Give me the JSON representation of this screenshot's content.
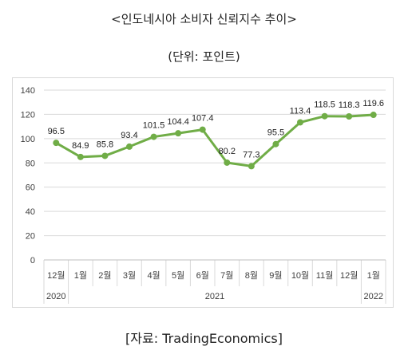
{
  "title": "<인도네시아 소비자 신뢰지수 추이>",
  "unit_label": "(단위: 포인트)",
  "source": "[자료: TradingEconomics]",
  "colors": {
    "line": "#70ad47",
    "grid": "#d9d9d9",
    "text": "#404040"
  },
  "chart_data": {
    "type": "line",
    "categories": [
      "12월",
      "1월",
      "2월",
      "3월",
      "4월",
      "5월",
      "6월",
      "7월",
      "8월",
      "9월",
      "10월",
      "11월",
      "12월",
      "1월"
    ],
    "year_groups": [
      {
        "label": "2020",
        "span": 1
      },
      {
        "label": "2021",
        "span": 12
      },
      {
        "label": "2022",
        "span": 1
      }
    ],
    "values": [
      96.5,
      84.9,
      85.8,
      93.4,
      101.5,
      104.4,
      107.4,
      80.2,
      77.3,
      95.5,
      113.4,
      118.5,
      118.3,
      119.6
    ],
    "data_labels": [
      "96.5",
      "84.9",
      "85.8",
      "93.4",
      "101.5",
      "104.4",
      "107.4",
      "80.2",
      "77.3",
      "95.5",
      "113.4",
      "118.5",
      "118.3",
      "119.6"
    ],
    "yticks": [
      "0",
      "20",
      "40",
      "60",
      "80",
      "100",
      "120",
      "140"
    ],
    "ylim": [
      0,
      140
    ],
    "grid": true,
    "legend": "none",
    "title": "",
    "xlabel": "",
    "ylabel": ""
  }
}
